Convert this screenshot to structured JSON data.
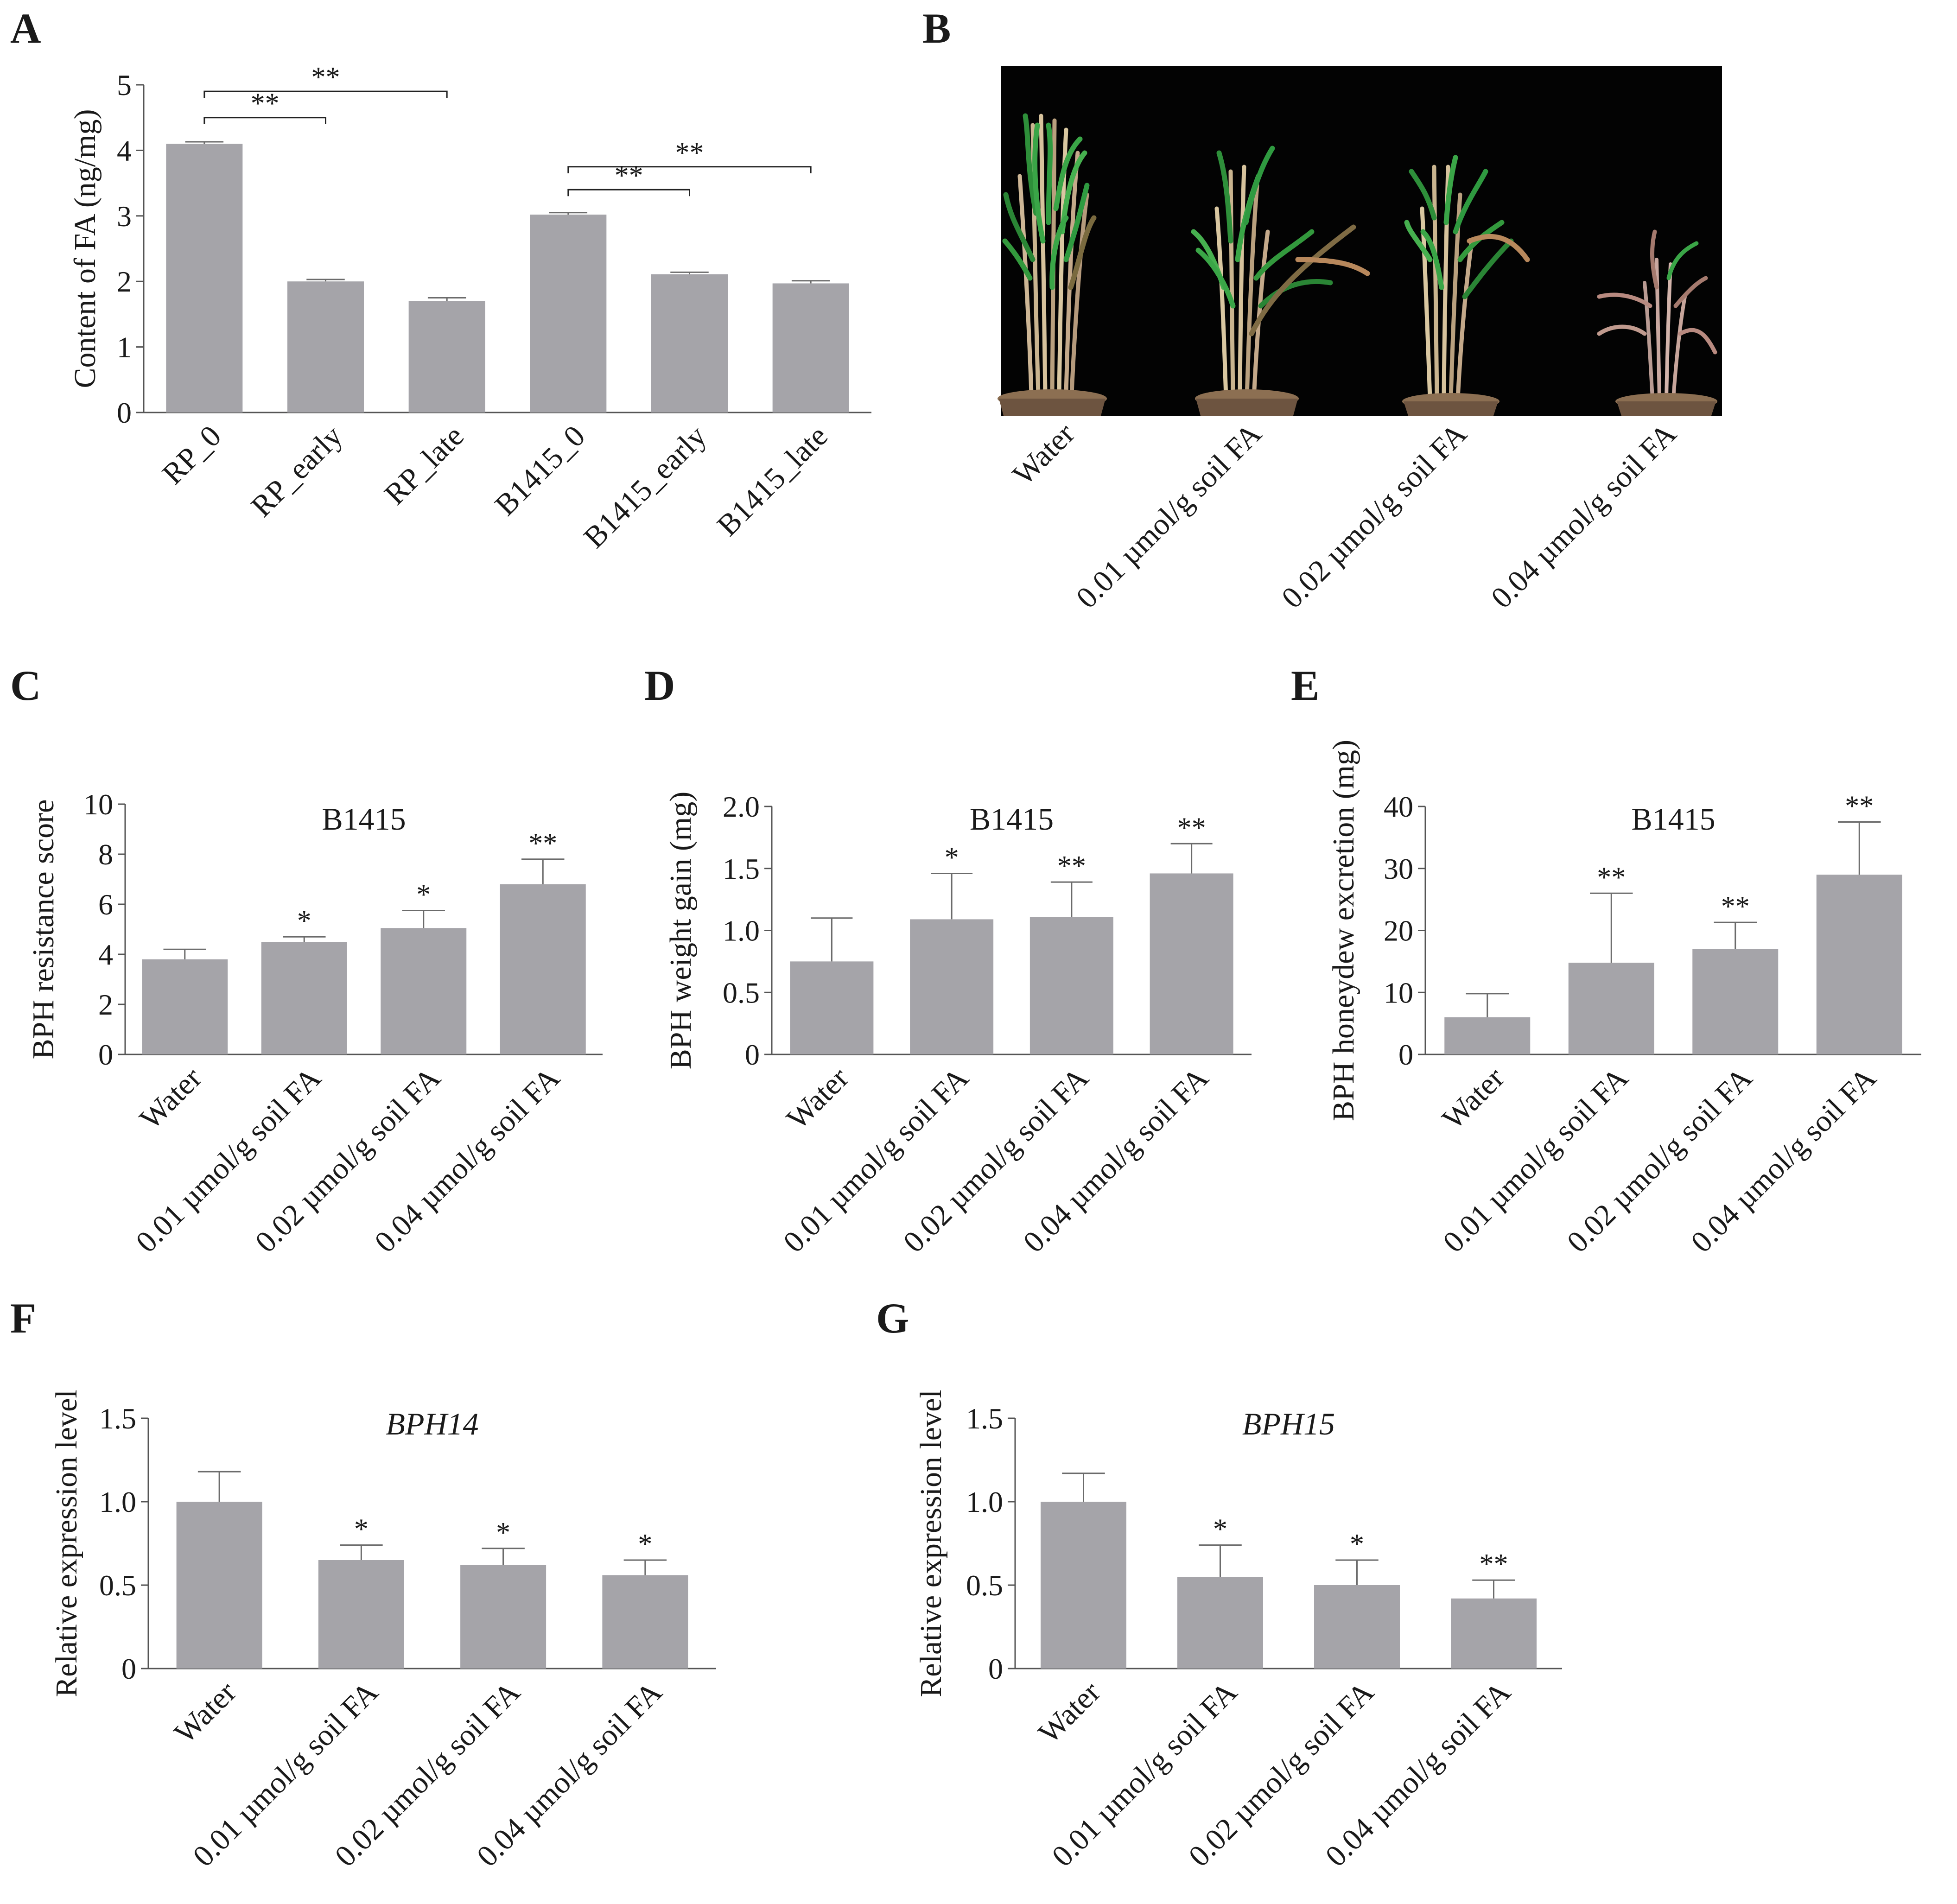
{
  "panels": {
    "A": "A",
    "B": "B",
    "C": "C",
    "D": "D",
    "E": "E",
    "F": "F",
    "G": "G"
  },
  "photo_labels": [
    "Water",
    "0.01 µmol/g soil FA",
    "0.02 µmol/g soil FA",
    "0.04 µmol/g soil FA"
  ],
  "chart_data": [
    {
      "id": "A",
      "type": "bar",
      "title": "",
      "ylabel": "Content of FA (ng/mg)",
      "categories": [
        "RP_0",
        "RP_early",
        "RP_late",
        "B1415_0",
        "B1415_early",
        "B1415_late"
      ],
      "values": [
        4.1,
        2.0,
        1.7,
        3.02,
        2.11,
        1.97
      ],
      "errors": [
        0.03,
        0.03,
        0.05,
        0.03,
        0.03,
        0.04
      ],
      "sig": [
        "",
        "",
        "",
        "",
        "",
        ""
      ],
      "brackets": [
        {
          "from": 0,
          "to": 1,
          "y": 4.5,
          "label": "**"
        },
        {
          "from": 0,
          "to": 2,
          "y": 4.9,
          "label": "**"
        },
        {
          "from": 3,
          "to": 4,
          "y": 3.4,
          "label": "**"
        },
        {
          "from": 3,
          "to": 5,
          "y": 3.75,
          "label": "**"
        }
      ],
      "ylim": [
        0,
        5
      ],
      "yticks": [
        "0",
        "1",
        "2",
        "3",
        "4",
        "5"
      ],
      "color": "#a5a4a9"
    },
    {
      "id": "C",
      "type": "bar",
      "title": "B1415",
      "ylabel": "BPH resistance score",
      "categories": [
        "Water",
        "0.01 µmol/g soil FA",
        "0.02 µmol/g soil FA",
        "0.04 µmol/g soil FA"
      ],
      "values": [
        3.8,
        4.5,
        5.05,
        6.8
      ],
      "errors": [
        0.4,
        0.2,
        0.7,
        1.0
      ],
      "sig": [
        "",
        "*",
        "*",
        "**"
      ],
      "ylim": [
        0,
        10
      ],
      "yticks": [
        "0",
        "2",
        "4",
        "6",
        "8",
        "10"
      ],
      "color": "#a5a4a9"
    },
    {
      "id": "D",
      "type": "bar",
      "title": "B1415",
      "ylabel": "BPH weight gain (mg)",
      "categories": [
        "Water",
        "0.01 µmol/g soil FA",
        "0.02 µmol/g soil FA",
        "0.04 µmol/g soil FA"
      ],
      "values": [
        0.75,
        1.09,
        1.11,
        1.46
      ],
      "errors": [
        0.35,
        0.37,
        0.28,
        0.24
      ],
      "sig": [
        "",
        "*",
        "**",
        "**"
      ],
      "ylim": [
        0,
        2.0
      ],
      "yticks": [
        "0",
        "0.5",
        "1.0",
        "1.5",
        "2.0"
      ],
      "color": "#a5a4a9"
    },
    {
      "id": "E",
      "type": "bar",
      "title": "B1415",
      "ylabel": "BPH honeydew excretion (mg)",
      "categories": [
        "Water",
        "0.01 µmol/g soil FA",
        "0.02 µmol/g soil FA",
        "0.04 µmol/g soil FA"
      ],
      "values": [
        6.0,
        14.8,
        17.0,
        29.0
      ],
      "errors": [
        3.8,
        11.2,
        4.3,
        8.5
      ],
      "sig": [
        "",
        "**",
        "**",
        "**"
      ],
      "ylim": [
        0,
        40
      ],
      "yticks": [
        "0",
        "10",
        "20",
        "30",
        "40"
      ],
      "color": "#a5a4a9"
    },
    {
      "id": "F",
      "type": "bar",
      "title": "BPH14",
      "title_italic": true,
      "ylabel": "Relative expression level",
      "categories": [
        "Water",
        "0.01 µmol/g soil FA",
        "0.02 µmol/g soil FA",
        "0.04 µmol/g soil FA"
      ],
      "values": [
        1.0,
        0.65,
        0.62,
        0.56
      ],
      "errors": [
        0.18,
        0.09,
        0.1,
        0.09
      ],
      "sig": [
        "",
        "*",
        "*",
        "*"
      ],
      "ylim": [
        0,
        1.5
      ],
      "yticks": [
        "0",
        "0.5",
        "1.0",
        "1.5"
      ],
      "color": "#a5a4a9"
    },
    {
      "id": "G",
      "type": "bar",
      "title": "BPH15",
      "title_italic": true,
      "ylabel": "Relative expression level",
      "categories": [
        "Water",
        "0.01 µmol/g soil FA",
        "0.02 µmol/g soil FA",
        "0.04 µmol/g soil FA"
      ],
      "values": [
        1.0,
        0.55,
        0.5,
        0.42
      ],
      "errors": [
        0.17,
        0.19,
        0.15,
        0.11
      ],
      "sig": [
        "",
        "*",
        "*",
        "**"
      ],
      "ylim": [
        0,
        1.5
      ],
      "yticks": [
        "0",
        "0.5",
        "1.0",
        "1.5"
      ],
      "color": "#a5a4a9"
    }
  ]
}
